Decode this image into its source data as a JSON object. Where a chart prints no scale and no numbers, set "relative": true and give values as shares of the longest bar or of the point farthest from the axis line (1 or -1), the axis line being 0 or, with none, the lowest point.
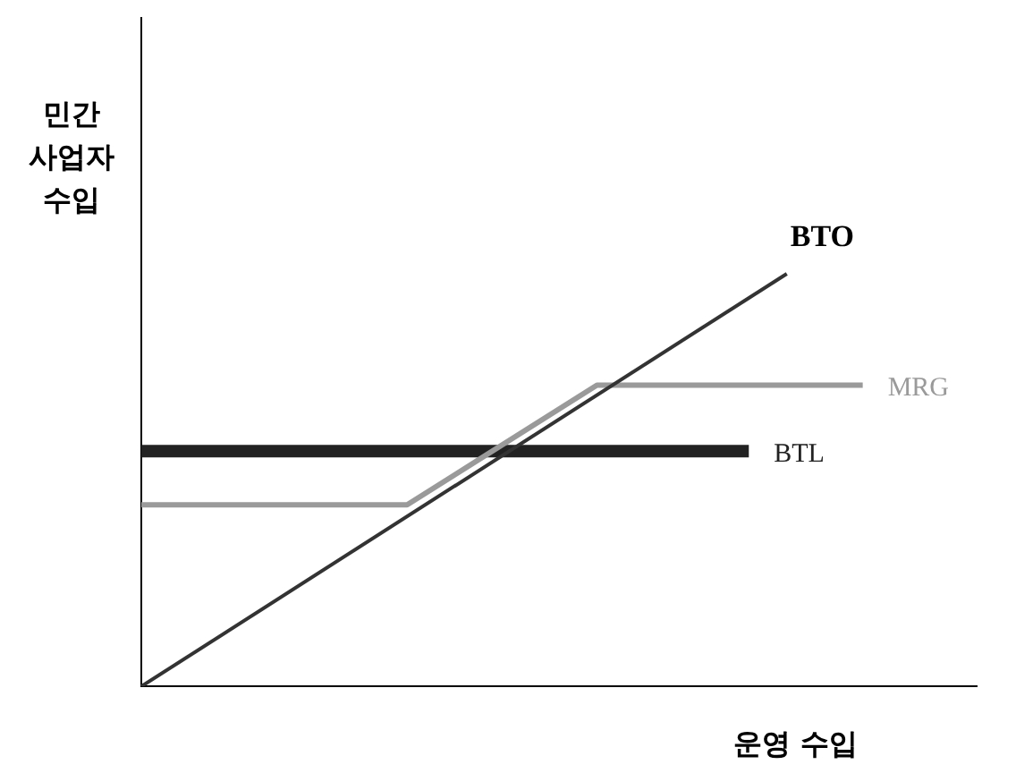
{
  "chart_data": {
    "type": "line",
    "relative": true,
    "xlabel": "운영 수입",
    "ylabel": "민간 사업자 수입",
    "grid": false,
    "legend": false,
    "marker": "none",
    "line_style": "solid",
    "categories": [
      null,
      null,
      null,
      null,
      null,
      null,
      null,
      null,
      null,
      null,
      null,
      null,
      null,
      null,
      null,
      null,
      null,
      null,
      null,
      null,
      null,
      null,
      null
    ],
    "series": [
      {
        "name": "BTO",
        "color": "#333333",
        "values": [
          0,
          null,
          null,
          null,
          null,
          null,
          null,
          null,
          null,
          null,
          null,
          null,
          null,
          null,
          null,
          null,
          null,
          1,
          null,
          null,
          null,
          null,
          null
        ]
      },
      {
        "name": "MRG",
        "color": "#9a9a9a",
        "values": [
          0.44,
          null,
          null,
          null,
          null,
          null,
          null,
          0.44,
          null,
          null,
          null,
          null,
          0.73,
          null,
          null,
          null,
          null,
          null,
          null,
          0.73,
          null,
          null,
          null
        ]
      },
      {
        "name": "BTL",
        "color": "#222222",
        "values": [
          0.57,
          null,
          null,
          null,
          null,
          null,
          null,
          null,
          null,
          null,
          null,
          null,
          null,
          null,
          null,
          null,
          0.57,
          null,
          null,
          null,
          null,
          null,
          null
        ]
      }
    ]
  }
}
